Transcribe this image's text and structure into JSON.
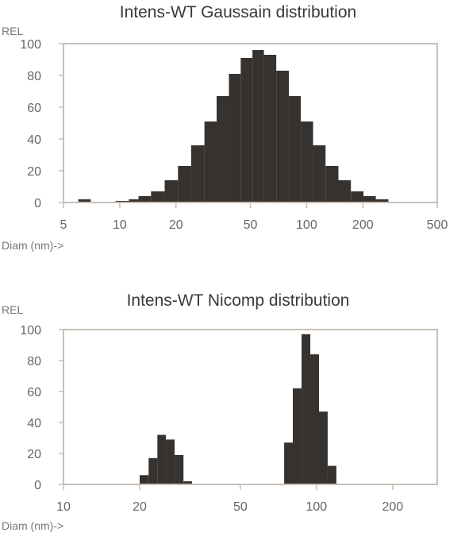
{
  "chart_data": [
    {
      "type": "bar",
      "title": "Intens-WT Gaussain distribution",
      "ylabel": "REL",
      "xlabel": "Diam (nm)->",
      "xscale": "log",
      "xlim": [
        5,
        500
      ],
      "ylim": [
        0,
        100
      ],
      "yticks": [
        0,
        20,
        40,
        60,
        80,
        100
      ],
      "xticks": [
        5,
        10,
        20,
        50,
        100,
        200,
        500
      ],
      "bins": [
        {
          "x0": 6.0,
          "x1": 7.0,
          "value": 2
        },
        {
          "x0": 9.5,
          "x1": 11.2,
          "value": 1
        },
        {
          "x0": 11.2,
          "x1": 12.6,
          "value": 2
        },
        {
          "x0": 12.6,
          "x1": 14.7,
          "value": 4
        },
        {
          "x0": 14.7,
          "x1": 17.4,
          "value": 7
        },
        {
          "x0": 17.4,
          "x1": 20.5,
          "value": 14
        },
        {
          "x0": 20.5,
          "x1": 24.1,
          "value": 23
        },
        {
          "x0": 24.1,
          "x1": 28.4,
          "value": 36
        },
        {
          "x0": 28.4,
          "x1": 33.0,
          "value": 51
        },
        {
          "x0": 33.0,
          "x1": 38.4,
          "value": 67
        },
        {
          "x0": 38.4,
          "x1": 44.4,
          "value": 81
        },
        {
          "x0": 44.4,
          "x1": 51.3,
          "value": 91
        },
        {
          "x0": 51.3,
          "x1": 59.1,
          "value": 96
        },
        {
          "x0": 59.1,
          "x1": 68.8,
          "value": 93
        },
        {
          "x0": 68.8,
          "x1": 80.4,
          "value": 83
        },
        {
          "x0": 80.4,
          "x1": 93.1,
          "value": 67
        },
        {
          "x0": 93.1,
          "x1": 108.3,
          "value": 51
        },
        {
          "x0": 108.3,
          "x1": 126.3,
          "value": 36
        },
        {
          "x0": 126.3,
          "x1": 148.0,
          "value": 23
        },
        {
          "x0": 148.0,
          "x1": 172.6,
          "value": 14
        },
        {
          "x0": 172.6,
          "x1": 201.5,
          "value": 7
        },
        {
          "x0": 201.5,
          "x1": 234.6,
          "value": 4
        },
        {
          "x0": 234.6,
          "x1": 274.0,
          "value": 2
        }
      ]
    },
    {
      "type": "bar",
      "title": "Intens-WT Nicomp distribution",
      "ylabel": "REL",
      "xlabel": "Diam (nm)->",
      "xscale": "log",
      "xlim": [
        10,
        300
      ],
      "ylim": [
        0,
        100
      ],
      "yticks": [
        0,
        20,
        40,
        60,
        80,
        100
      ],
      "xticks": [
        10,
        20,
        50,
        100,
        200
      ],
      "bins": [
        {
          "x0": 20.0,
          "x1": 21.7,
          "value": 6
        },
        {
          "x0": 21.7,
          "x1": 23.5,
          "value": 17
        },
        {
          "x0": 23.5,
          "x1": 25.4,
          "value": 32
        },
        {
          "x0": 25.4,
          "x1": 27.5,
          "value": 29
        },
        {
          "x0": 27.5,
          "x1": 29.8,
          "value": 19
        },
        {
          "x0": 29.8,
          "x1": 32.2,
          "value": 2
        },
        {
          "x0": 74.5,
          "x1": 80.6,
          "value": 27
        },
        {
          "x0": 80.6,
          "x1": 87.3,
          "value": 62
        },
        {
          "x0": 87.3,
          "x1": 94.5,
          "value": 97
        },
        {
          "x0": 94.5,
          "x1": 102.3,
          "value": 84
        },
        {
          "x0": 102.3,
          "x1": 110.7,
          "value": 47
        },
        {
          "x0": 110.7,
          "x1": 119.8,
          "value": 12
        }
      ]
    }
  ]
}
